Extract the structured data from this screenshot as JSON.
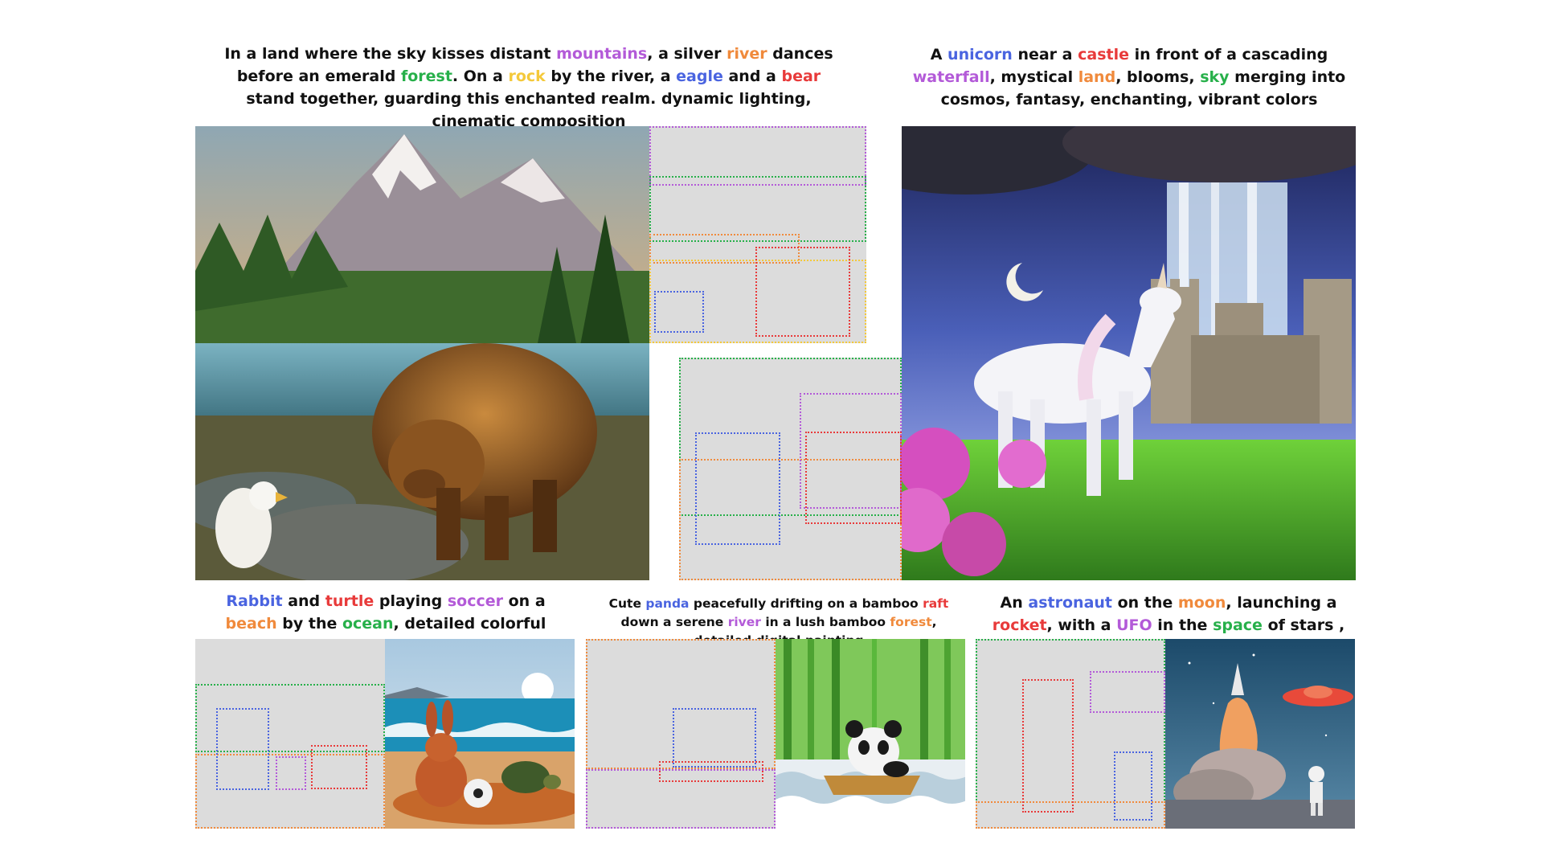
{
  "colors": {
    "purple": "#b35ad8",
    "orange": "#f08a3c",
    "green": "#27b04a",
    "yellow": "#f4c93a",
    "blue": "#4a64e0",
    "red": "#e83a3a",
    "panel_gray": "#dcdcdc"
  },
  "captions": {
    "main_left": [
      {
        "t": "In a land where the sky kisses distant "
      },
      {
        "t": "mountains",
        "c": "purple"
      },
      {
        "t": ", a silver "
      },
      {
        "t": "river",
        "c": "orange"
      },
      {
        "t": " dances before an emerald "
      },
      {
        "t": "forest",
        "c": "green"
      },
      {
        "t": ". On a "
      },
      {
        "t": "rock",
        "c": "yellow"
      },
      {
        "t": " by the river, a "
      },
      {
        "t": "eagle",
        "c": "blue"
      },
      {
        "t": " and a "
      },
      {
        "t": "bear",
        "c": "red"
      },
      {
        "t": " stand together, guarding this enchanted realm. dynamic lighting, cinematic composition"
      }
    ],
    "main_right": [
      {
        "t": "A "
      },
      {
        "t": "unicorn",
        "c": "blue"
      },
      {
        "t": " near a "
      },
      {
        "t": "castle",
        "c": "red"
      },
      {
        "t": " in front of a cascading "
      },
      {
        "t": "waterfall",
        "c": "purple"
      },
      {
        "t": ", mystical "
      },
      {
        "t": "land",
        "c": "orange"
      },
      {
        "t": ", blooms, "
      },
      {
        "t": "sky",
        "c": "green"
      },
      {
        "t": " merging into cosmos, fantasy, enchanting, vibrant colors"
      }
    ],
    "bottom_left": [
      {
        "t": "Rabbit",
        "c": "blue"
      },
      {
        "t": " and "
      },
      {
        "t": "turtle",
        "c": "red"
      },
      {
        "t": " playing "
      },
      {
        "t": "soccer",
        "c": "purple"
      },
      {
        "t": " on a "
      },
      {
        "t": "beach",
        "c": "orange"
      },
      {
        "t": " by the "
      },
      {
        "t": "ocean",
        "c": "green"
      },
      {
        "t": ", detailed colorful digital painting"
      }
    ],
    "bottom_middle": [
      {
        "t": "Cute "
      },
      {
        "t": "panda",
        "c": "blue"
      },
      {
        "t": " peacefully drifting on a bamboo "
      },
      {
        "t": "raft",
        "c": "red"
      },
      {
        "t": " down a serene "
      },
      {
        "t": "river",
        "c": "purple"
      },
      {
        "t": " in a lush bamboo "
      },
      {
        "t": "forest",
        "c": "orange"
      },
      {
        "t": ", detailed digital painting"
      }
    ],
    "bottom_right": [
      {
        "t": "An "
      },
      {
        "t": "astronaut",
        "c": "blue"
      },
      {
        "t": " on the "
      },
      {
        "t": "moon",
        "c": "orange"
      },
      {
        "t": ", launching a "
      },
      {
        "t": "rocket",
        "c": "red"
      },
      {
        "t": ", with a "
      },
      {
        "t": "UFO",
        "c": "purple"
      },
      {
        "t": " in the "
      },
      {
        "t": "space",
        "c": "green"
      },
      {
        "t": " of stars , sci-fi"
      }
    ]
  }
}
